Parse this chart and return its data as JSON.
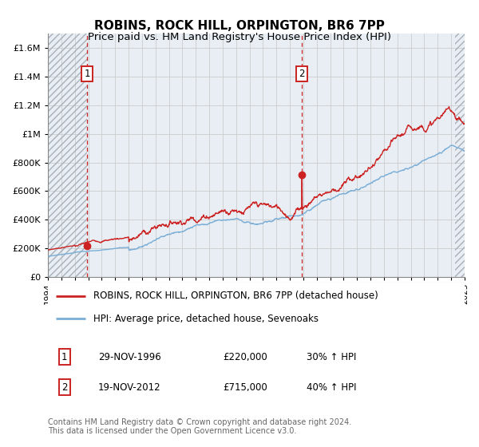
{
  "title": "ROBINS, ROCK HILL, ORPINGTON, BR6 7PP",
  "subtitle": "Price paid vs. HM Land Registry's House Price Index (HPI)",
  "ylim": [
    0,
    1700000
  ],
  "yticks": [
    0,
    200000,
    400000,
    600000,
    800000,
    1000000,
    1200000,
    1400000,
    1600000
  ],
  "ytick_labels": [
    "£0",
    "£200K",
    "£400K",
    "£600K",
    "£800K",
    "£1M",
    "£1.2M",
    "£1.4M",
    "£1.6M"
  ],
  "xmin": 1994,
  "xmax": 2025,
  "sale1_x": 1996.91,
  "sale1_y": 220000,
  "sale1_label": "1",
  "sale1_date": "29-NOV-1996",
  "sale1_price": "£220,000",
  "sale1_hpi": "30% ↑ HPI",
  "sale2_x": 2012.89,
  "sale2_y": 715000,
  "sale2_label": "2",
  "sale2_date": "19-NOV-2012",
  "sale2_price": "£715,000",
  "sale2_hpi": "40% ↑ HPI",
  "red_line_color": "#cc2222",
  "blue_line_color": "#7aaed6",
  "marker_color": "#cc2222",
  "grid_color": "#cccccc",
  "bg_color": "#ffffff",
  "plot_bg_color": "#e8eef4",
  "legend_label_red": "ROBINS, ROCK HILL, ORPINGTON, BR6 7PP (detached house)",
  "legend_label_blue": "HPI: Average price, detached house, Sevenoaks",
  "footer": "Contains HM Land Registry data © Crown copyright and database right 2024.\nThis data is licensed under the Open Government Licence v3.0.",
  "title_fontsize": 11,
  "subtitle_fontsize": 9.5,
  "axis_fontsize": 8,
  "legend_fontsize": 8.5,
  "annotation_fontsize": 8.5,
  "footer_fontsize": 7
}
